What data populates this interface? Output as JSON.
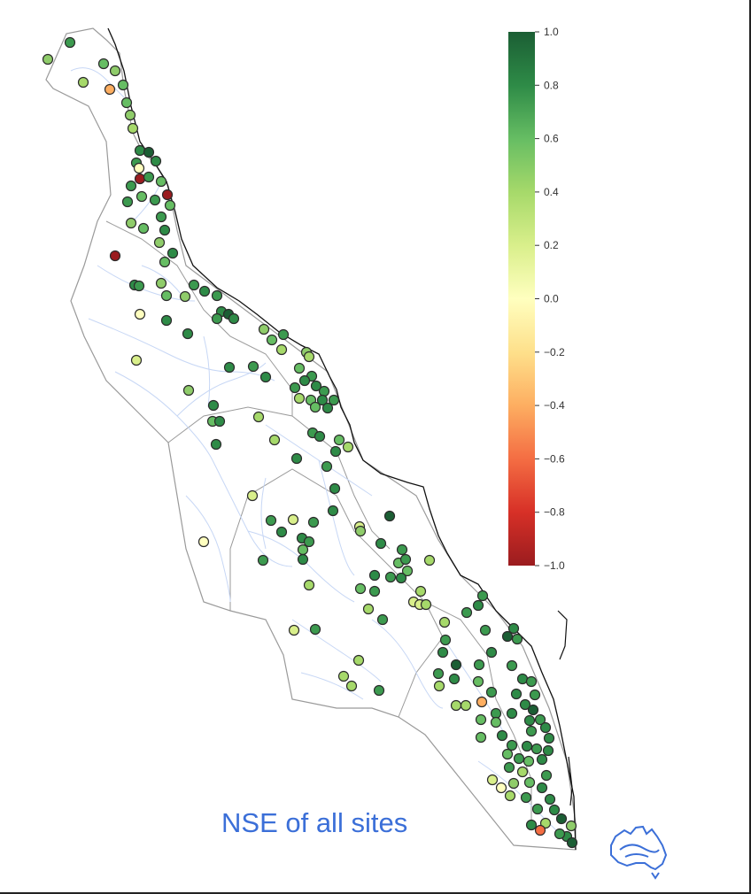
{
  "title": "NSE of all sites",
  "colorbar": {
    "min": -1.0,
    "max": 1.0,
    "ticks": [
      "1.0",
      "0.8",
      "0.6",
      "0.4",
      "0.2",
      "0.0",
      "−0.2",
      "−0.4",
      "−0.6",
      "−0.8",
      "−1.0"
    ],
    "colors": [
      "#1b5e34",
      "#2e8b47",
      "#66bd63",
      "#a6d96a",
      "#d9ef8b",
      "#ffffbf",
      "#fee08b",
      "#fdae61",
      "#f46d43",
      "#d73027",
      "#9b1c1f"
    ]
  },
  "colors": {
    "title": "#3b6fd8",
    "rivers": "#c7d7f5",
    "boundary": "#9a9a9a",
    "coastline": "#111111",
    "australia_icon": "#3b6fd8"
  },
  "legend_icon": "australia-map-icon"
}
